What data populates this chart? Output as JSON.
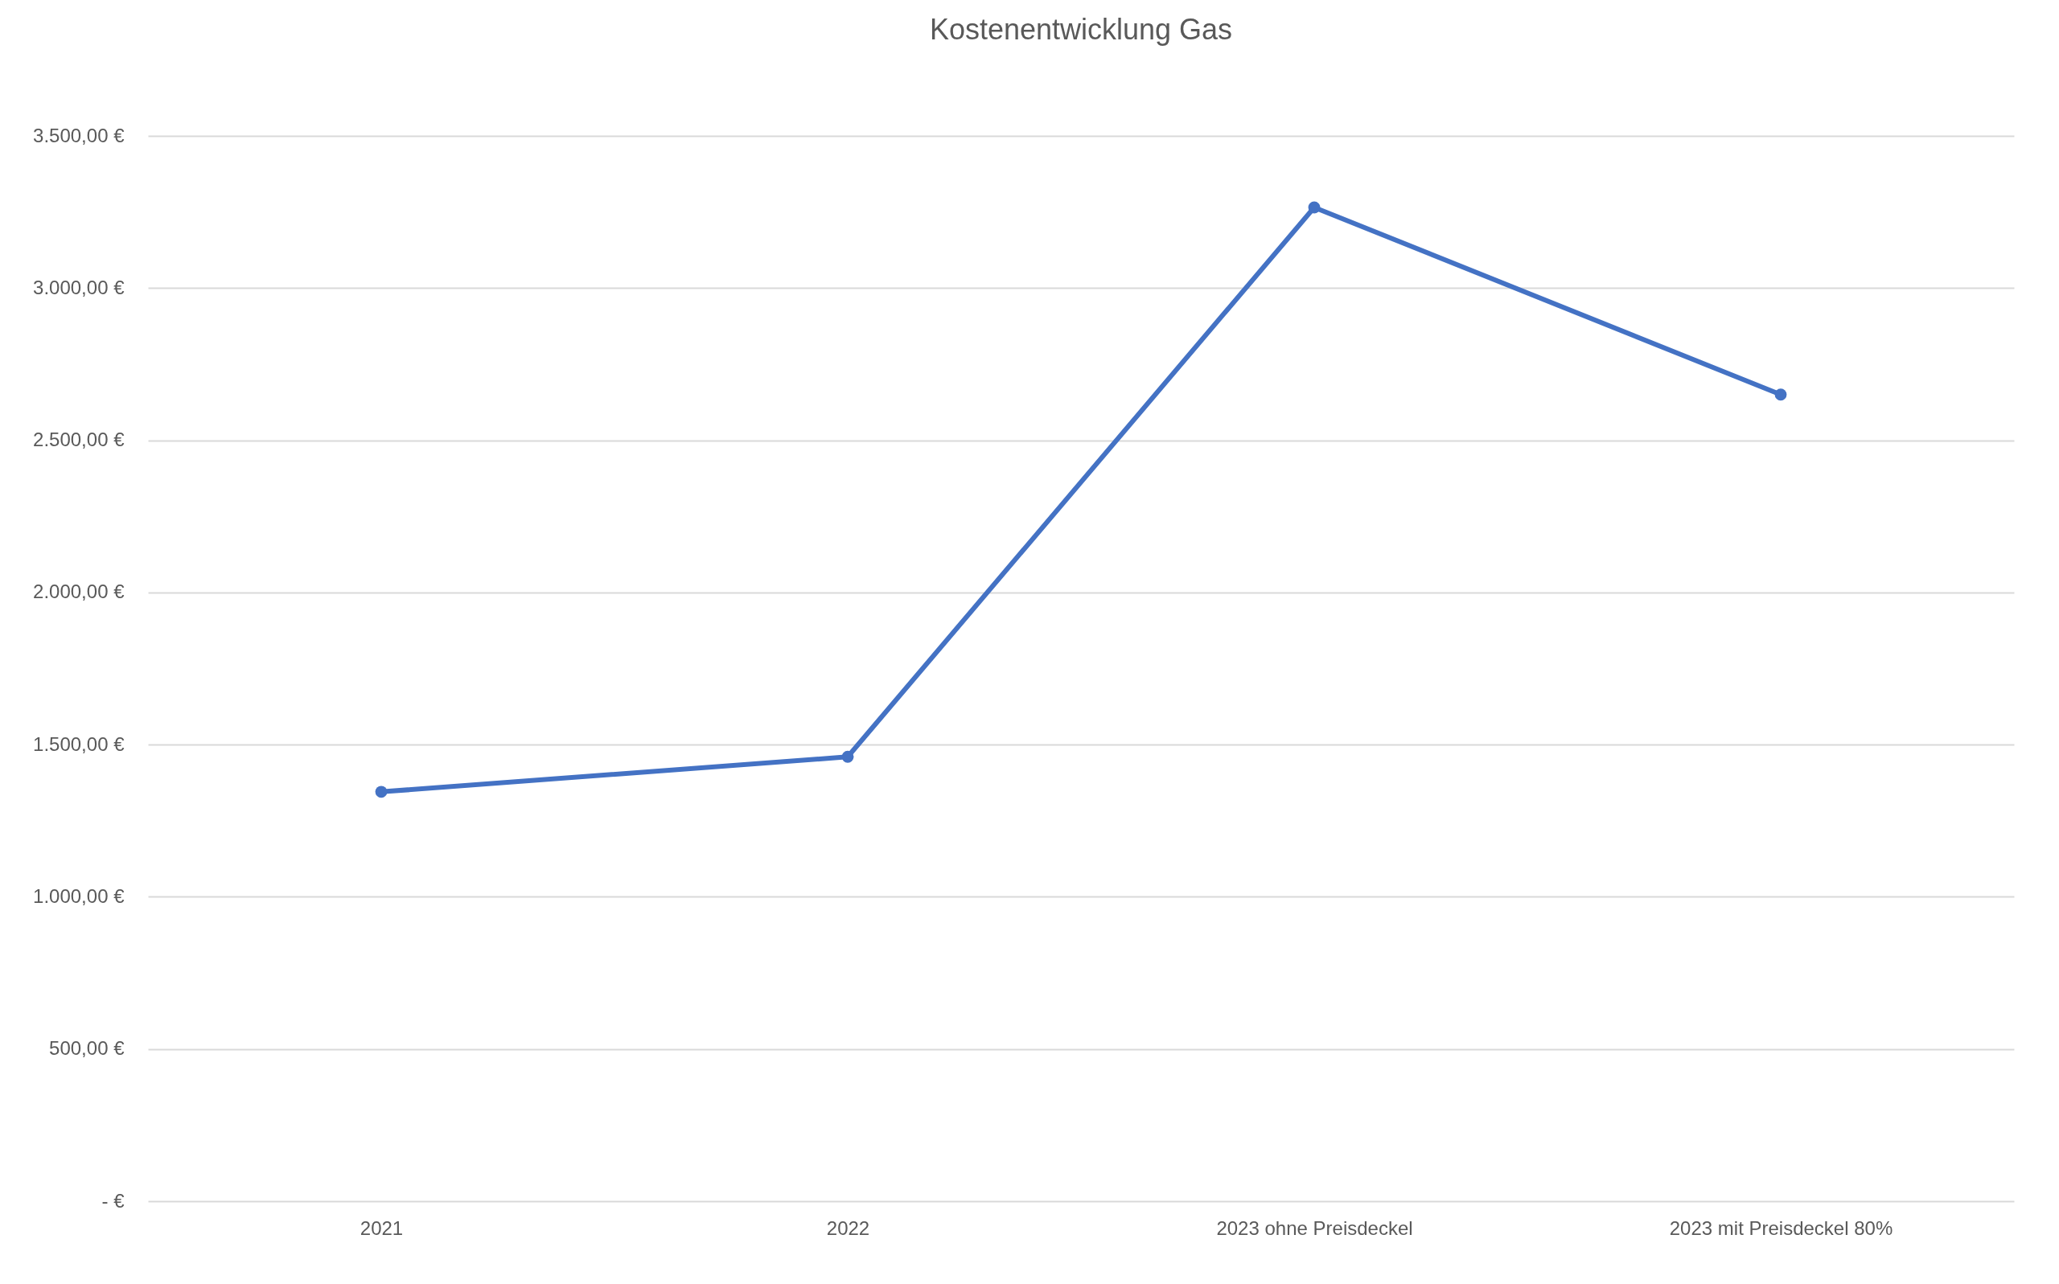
{
  "chart_data": {
    "type": "line",
    "title": "Kostenentwicklung Gas",
    "categories": [
      "2021",
      "2022",
      "2023 ohne Preisdeckel",
      "2023 mit Preisdeckel 80%"
    ],
    "series": [
      {
        "color": "#4472c4",
        "values": [
          1345,
          1460,
          3265,
          2650
        ]
      }
    ],
    "ylim": [
      0,
      3500
    ],
    "yticks": [
      {
        "value": 0,
        "label": "- €"
      },
      {
        "value": 500,
        "label": "500,00 €"
      },
      {
        "value": 1000,
        "label": "1.000,00 €"
      },
      {
        "value": 1500,
        "label": "1.500,00 €"
      },
      {
        "value": 2000,
        "label": "2.000,00 €"
      },
      {
        "value": 2500,
        "label": "2.500,00 €"
      },
      {
        "value": 3000,
        "label": "3.000,00 €"
      },
      {
        "value": 3500,
        "label": "3.500,00 €"
      }
    ],
    "grid": "y",
    "legend": false,
    "marker": "circle",
    "line_style": "solid"
  }
}
